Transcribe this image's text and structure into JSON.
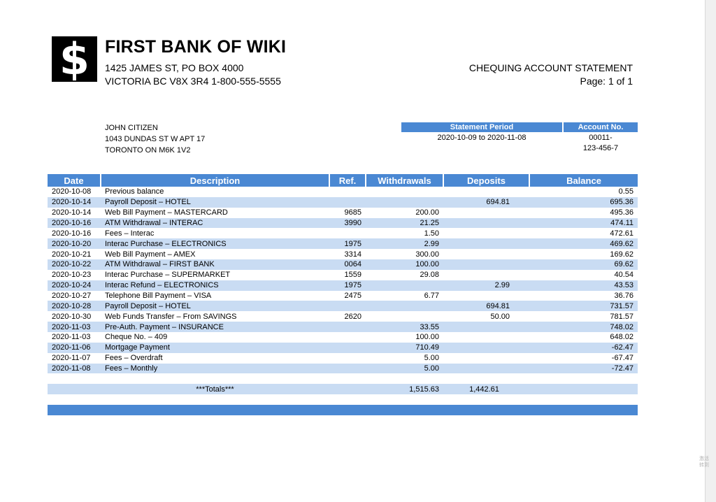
{
  "bank": {
    "logo_symbol": "$",
    "name": "FIRST BANK OF WIKI",
    "address_line1": "1425 JAMES ST, PO BOX 4000",
    "address_line2": "VICTORIA BC V8X 3R4 1-800-555-5555"
  },
  "statement": {
    "title": "CHEQUING ACCOUNT STATEMENT",
    "page_label": "Page: 1 of 1"
  },
  "customer": {
    "name": "JOHN CITIZEN",
    "address_line1": "1043 DUNDAS ST W APT 17",
    "address_line2": "TORONTO ON M6K 1V2"
  },
  "summary": {
    "period_header": "Statement Period",
    "account_header": "Account No.",
    "period_value": "2020-10-09 to 2020-11-08",
    "account_line1": "00011-",
    "account_line2": "123-456-7"
  },
  "table": {
    "headers": {
      "date": "Date",
      "description": "Description",
      "ref": "Ref.",
      "withdrawals": "Withdrawals",
      "deposits": "Deposits",
      "balance": "Balance"
    },
    "rows": [
      {
        "date": "2020-10-08",
        "description": "Previous balance",
        "ref": "",
        "withdrawal": "",
        "deposit": "",
        "balance": "0.55"
      },
      {
        "date": "2020-10-14",
        "description": "Payroll Deposit – HOTEL",
        "ref": "",
        "withdrawal": "",
        "deposit": "694.81",
        "balance": "695.36"
      },
      {
        "date": "2020-10-14",
        "description": "Web Bill Payment – MASTERCARD",
        "ref": "9685",
        "withdrawal": "200.00",
        "deposit": "",
        "balance": "495.36"
      },
      {
        "date": "2020-10-16",
        "description": "ATM Withdrawal – INTERAC",
        "ref": "3990",
        "withdrawal": "21.25",
        "deposit": "",
        "balance": "474.11"
      },
      {
        "date": "2020-10-16",
        "description": "Fees – Interac",
        "ref": "",
        "withdrawal": "1.50",
        "deposit": "",
        "balance": "472.61"
      },
      {
        "date": "2020-10-20",
        "description": "Interac Purchase – ELECTRONICS",
        "ref": "1975",
        "withdrawal": "2.99",
        "deposit": "",
        "balance": "469.62"
      },
      {
        "date": "2020-10-21",
        "description": "Web Bill Payment – AMEX",
        "ref": "3314",
        "withdrawal": "300.00",
        "deposit": "",
        "balance": "169.62"
      },
      {
        "date": "2020-10-22",
        "description": "ATM Withdrawal – FIRST BANK",
        "ref": "0064",
        "withdrawal": "100.00",
        "deposit": "",
        "balance": "69.62"
      },
      {
        "date": "2020-10-23",
        "description": "Interac Purchase – SUPERMARKET",
        "ref": "1559",
        "withdrawal": "29.08",
        "deposit": "",
        "balance": "40.54"
      },
      {
        "date": "2020-10-24",
        "description": "Interac Refund – ELECTRONICS",
        "ref": "1975",
        "withdrawal": "",
        "deposit": "2.99",
        "balance": "43.53"
      },
      {
        "date": "2020-10-27",
        "description": "Telephone Bill Payment – VISA",
        "ref": "2475",
        "withdrawal": "6.77",
        "deposit": "",
        "balance": "36.76"
      },
      {
        "date": "2020-10-28",
        "description": "Payroll Deposit – HOTEL",
        "ref": "",
        "withdrawal": "",
        "deposit": "694.81",
        "balance": "731.57"
      },
      {
        "date": "2020-10-30",
        "description": "Web Funds Transfer – From SAVINGS",
        "ref": "2620",
        "withdrawal": "",
        "deposit": "50.00",
        "balance": "781.57"
      },
      {
        "date": "2020-11-03",
        "description": "Pre-Auth. Payment – INSURANCE",
        "ref": "",
        "withdrawal": "33.55",
        "deposit": "",
        "balance": "748.02"
      },
      {
        "date": "2020-11-03",
        "description": "Cheque No. – 409",
        "ref": "",
        "withdrawal": "100.00",
        "deposit": "",
        "balance": "648.02"
      },
      {
        "date": "2020-11-06",
        "description": "Mortgage Payment",
        "ref": "",
        "withdrawal": "710.49",
        "deposit": "",
        "balance": "-62.47"
      },
      {
        "date": "2020-11-07",
        "description": "Fees – Overdraft",
        "ref": "",
        "withdrawal": "5.00",
        "deposit": "",
        "balance": "-67.47"
      },
      {
        "date": "2020-11-08",
        "description": "Fees – Monthly",
        "ref": "",
        "withdrawal": "5.00",
        "deposit": "",
        "balance": "-72.47"
      }
    ],
    "totals": {
      "label": "***Totals***",
      "withdrawals": "1,515.63",
      "deposits": "1,442.61"
    }
  },
  "corner_text": [
    "激活",
    "转到"
  ],
  "colors": {
    "header_blue": "#4a88d3",
    "row_alt": "#c9dcf3"
  }
}
